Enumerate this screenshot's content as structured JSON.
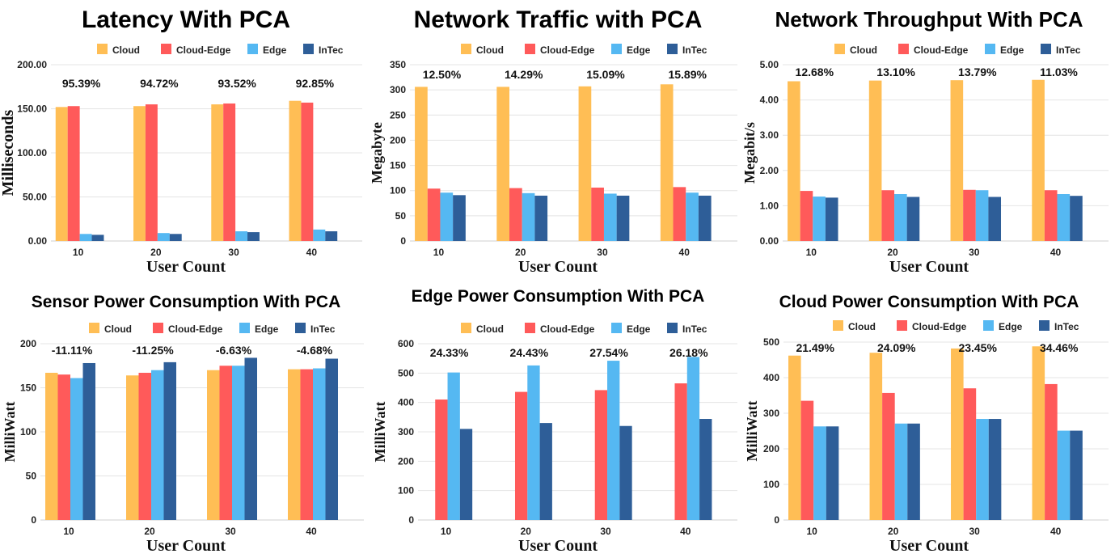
{
  "colors": {
    "Cloud": "#FFBE55",
    "Cloud-Edge": "#FF5A5A",
    "Edge": "#55B8F2",
    "InTec": "#2E5E98"
  },
  "legend_entries": [
    "Cloud",
    "Cloud-Edge",
    "Edge",
    "InTec"
  ],
  "chart_data": [
    {
      "type": "bar",
      "title": "Latency With PCA",
      "xlabel": "User Count",
      "ylabel": "Milliseconds",
      "categories": [
        "10",
        "20",
        "30",
        "40"
      ],
      "ylim": [
        0,
        200
      ],
      "yticks": [
        "0.00",
        "50.00",
        "100.00",
        "150.00",
        "200.00"
      ],
      "legend_placement": "top",
      "grid": true,
      "series": [
        {
          "name": "Cloud",
          "values": [
            152,
            153,
            155,
            159
          ]
        },
        {
          "name": "Cloud-Edge",
          "values": [
            153,
            155,
            156,
            157
          ]
        },
        {
          "name": "Edge",
          "values": [
            8,
            9,
            11,
            13
          ]
        },
        {
          "name": "InTec",
          "values": [
            7,
            8,
            10,
            11
          ]
        }
      ],
      "annotations": [
        "95.39%",
        "94.72%",
        "93.52%",
        "92.85%"
      ]
    },
    {
      "type": "bar",
      "title": "Network Traffic with PCA",
      "xlabel": "User Count",
      "ylabel": "Megabyte",
      "categories": [
        "10",
        "20",
        "30",
        "40"
      ],
      "ylim": [
        0,
        350
      ],
      "yticks": [
        "0",
        "50",
        "100",
        "150",
        "200",
        "250",
        "300",
        "350"
      ],
      "legend_placement": "top",
      "grid": true,
      "series": [
        {
          "name": "Cloud",
          "values": [
            306,
            306,
            307,
            311
          ]
        },
        {
          "name": "Cloud-Edge",
          "values": [
            104,
            105,
            106,
            107
          ]
        },
        {
          "name": "Edge",
          "values": [
            96,
            95,
            94,
            96
          ]
        },
        {
          "name": "InTec",
          "values": [
            91,
            90,
            90,
            90
          ]
        }
      ],
      "annotations": [
        "12.50%",
        "14.29%",
        "15.09%",
        "15.89%"
      ]
    },
    {
      "type": "bar",
      "title": "Network Throughput With PCA",
      "xlabel": "User Count",
      "ylabel": "Megabit/s",
      "categories": [
        "10",
        "20",
        "30",
        "40"
      ],
      "ylim": [
        0,
        5
      ],
      "yticks": [
        "0.00",
        "1.00",
        "2.00",
        "3.00",
        "4.00",
        "5.00"
      ],
      "legend_placement": "top",
      "grid": true,
      "series": [
        {
          "name": "Cloud",
          "values": [
            4.53,
            4.55,
            4.56,
            4.57
          ]
        },
        {
          "name": "Cloud-Edge",
          "values": [
            1.42,
            1.44,
            1.45,
            1.44
          ]
        },
        {
          "name": "Edge",
          "values": [
            1.26,
            1.33,
            1.44,
            1.33
          ]
        },
        {
          "name": "InTec",
          "values": [
            1.23,
            1.25,
            1.25,
            1.28
          ]
        }
      ],
      "annotations": [
        "12.68%",
        "13.10%",
        "13.79%",
        "11.03%"
      ]
    },
    {
      "type": "bar",
      "title": "Sensor Power Consumption With PCA",
      "xlabel": "User Count",
      "ylabel": "MilliWatt",
      "categories": [
        "10",
        "20",
        "30",
        "40"
      ],
      "ylim": [
        0,
        200
      ],
      "yticks": [
        "0",
        "50",
        "100",
        "150",
        "200"
      ],
      "legend_placement": "top",
      "grid": true,
      "series": [
        {
          "name": "Cloud",
          "values": [
            167,
            164,
            170,
            171
          ]
        },
        {
          "name": "Cloud-Edge",
          "values": [
            165,
            167,
            175,
            171
          ]
        },
        {
          "name": "Edge",
          "values": [
            161,
            170,
            175,
            172
          ]
        },
        {
          "name": "InTec",
          "values": [
            178,
            179,
            184,
            183
          ]
        }
      ],
      "annotations": [
        "-11.11%",
        "-11.25%",
        "-6.63%",
        "-4.68%"
      ]
    },
    {
      "type": "bar",
      "title": "Edge Power Consumption With PCA",
      "xlabel": "User Count",
      "ylabel": "MilliWatt",
      "categories": [
        "10",
        "20",
        "30",
        "40"
      ],
      "ylim": [
        0,
        600
      ],
      "yticks": [
        "0",
        "100",
        "200",
        "300",
        "400",
        "500",
        "600"
      ],
      "legend_placement": "top",
      "grid": true,
      "series": [
        {
          "name": "Cloud",
          "values": [
            0,
            0,
            0,
            0
          ]
        },
        {
          "name": "Cloud-Edge",
          "values": [
            410,
            436,
            442,
            465
          ]
        },
        {
          "name": "Edge",
          "values": [
            502,
            526,
            542,
            555
          ]
        },
        {
          "name": "InTec",
          "values": [
            310,
            330,
            320,
            344
          ]
        }
      ],
      "annotations": [
        "24.33%",
        "24.43%",
        "27.54%",
        "26.18%"
      ]
    },
    {
      "type": "bar",
      "title": "Cloud Power Consumption With PCA",
      "xlabel": "User Count",
      "ylabel": "MilliWatt",
      "categories": [
        "10",
        "20",
        "30",
        "40"
      ],
      "ylim": [
        0,
        500
      ],
      "yticks": [
        "0",
        "100",
        "200",
        "300",
        "400",
        "500"
      ],
      "legend_placement": "top",
      "grid": true,
      "series": [
        {
          "name": "Cloud",
          "values": [
            462,
            470,
            482,
            488
          ]
        },
        {
          "name": "Cloud-Edge",
          "values": [
            335,
            357,
            370,
            382
          ]
        },
        {
          "name": "Edge",
          "values": [
            263,
            271,
            284,
            251
          ]
        },
        {
          "name": "InTec",
          "values": [
            263,
            271,
            284,
            251
          ]
        }
      ],
      "annotations": [
        "21.49%",
        "24.09%",
        "23.45%",
        "34.46%"
      ]
    }
  ]
}
